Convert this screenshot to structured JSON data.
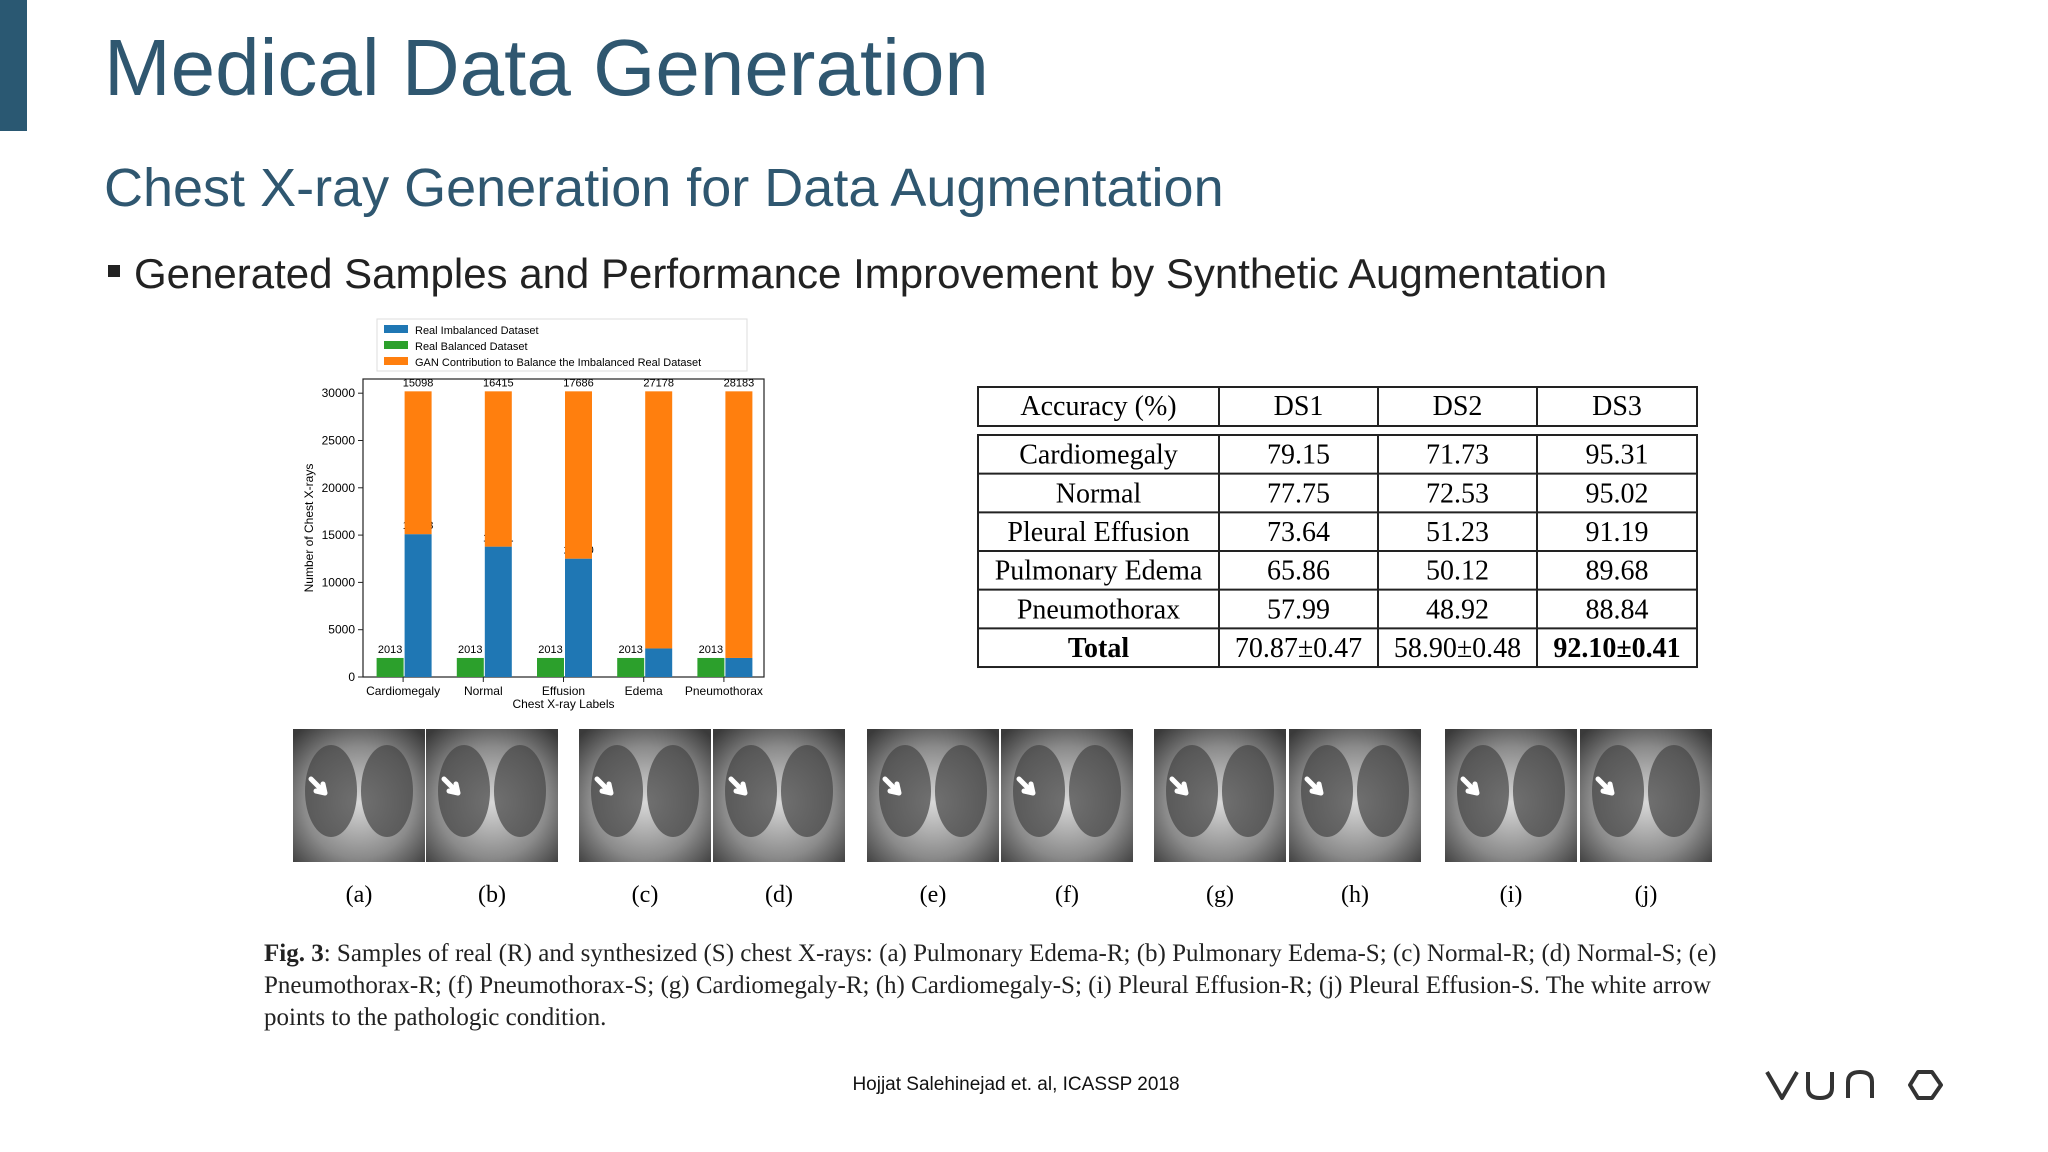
{
  "header": {
    "title": "Medical Data Generation",
    "subtitle": "Chest X-ray Generation for Data Augmentation"
  },
  "bullet": "Generated Samples and Performance Improvement by Synthetic Augmentation",
  "chart_data": {
    "type": "bar",
    "y_label": "Number of Chest X-rays",
    "x_label": "Chest X-ray Labels",
    "categories": [
      "Cardiomegaly",
      "Normal",
      "Effusion",
      "Edema",
      "Pneumothorax"
    ],
    "series": [
      {
        "name": "Real Imbalanced Dataset",
        "color": "#1f77b4",
        "values": [
          15098,
          13781,
          12510,
          3018,
          2013
        ]
      },
      {
        "name": "Real Balanced Dataset",
        "color": "#2ca02c",
        "values": [
          2013,
          2013,
          2013,
          2013,
          2013
        ]
      },
      {
        "name": "GAN Contribution to Balance the Imbalanced Real Dataset",
        "color": "#ff7f0e",
        "values": [
          15098,
          16415,
          17686,
          27178,
          28183
        ]
      }
    ],
    "ylim": [
      0,
      31500
    ],
    "yticks": [
      0,
      5000,
      10000,
      15000,
      20000,
      25000,
      30000
    ]
  },
  "table": {
    "header": [
      "Accuracy (%)",
      "DS1",
      "DS2",
      "DS3"
    ],
    "rows": [
      [
        "Cardiomegaly",
        "79.15",
        "71.73",
        "95.31"
      ],
      [
        "Normal",
        "77.75",
        "72.53",
        "95.02"
      ],
      [
        "Pleural Effusion",
        "73.64",
        "51.23",
        "91.19"
      ],
      [
        "Pulmonary Edema",
        "65.86",
        "50.12",
        "89.68"
      ],
      [
        "Pneumothorax",
        "57.99",
        "48.92",
        "88.84"
      ],
      [
        "Total",
        "70.87±0.47",
        "58.90±0.48",
        "92.10±0.41"
      ]
    ]
  },
  "figure": {
    "panels": [
      "(a)",
      "(b)",
      "(c)",
      "(d)",
      "(e)",
      "(f)",
      "(g)",
      "(h)",
      "(i)",
      "(j)"
    ],
    "caption_label": "Fig. 3",
    "caption": ": Samples of real (R) and synthesized (S) chest X-rays: (a) Pulmonary Edema-R; (b) Pulmonary Edema-S; (c) Normal-R; (d) Normal-S; (e) Pneumothorax-R; (f) Pneumothorax-S; (g) Cardiomegaly-R; (h) Cardiomegaly-S; (i) Pleural Effusion-R; (j) Pleural Effusion-S. The white arrow points to the pathologic condition."
  },
  "citation": "Hojjat Salehinejad et. al, ICASSP 2018"
}
